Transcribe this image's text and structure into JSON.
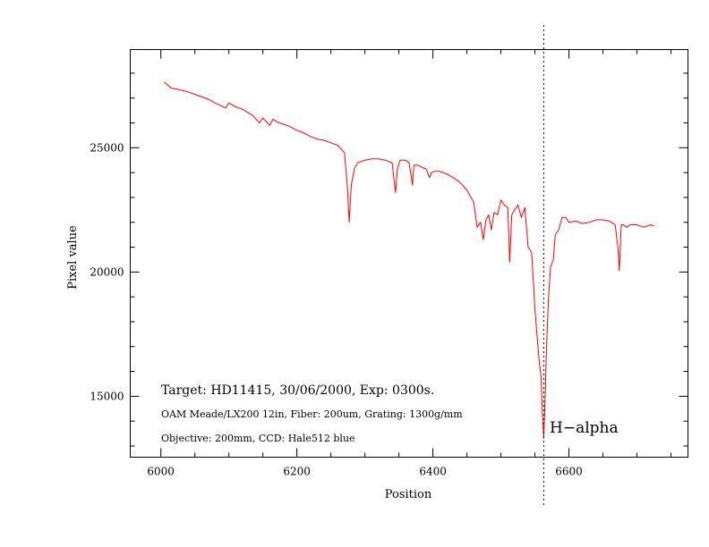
{
  "chart_data": {
    "type": "line",
    "xlabel": "Position",
    "ylabel": "Pixel value",
    "xlim": [
      5955,
      6775
    ],
    "ylim": [
      12550,
      28950
    ],
    "x_ticks": [
      6000,
      6200,
      6400,
      6600
    ],
    "y_ticks": [
      15000,
      20000,
      25000
    ],
    "x_minor_step": 50,
    "y_minor_step": 1000,
    "grid": false,
    "line_color": "#ff0000",
    "marker": {
      "x": 6563,
      "style": "dotted",
      "label": "H−alpha"
    },
    "annotations": [
      "Target: HD11415, 30/06/2000, Exp: 0300s.",
      "OAM Meade/LX200 12in, Fiber: 200um, Grating: 1300g/mm",
      "Objective: 200mm, CCD: Hale512 blue"
    ],
    "series": [
      {
        "x": [
          6005,
          6015,
          6025,
          6040,
          6055,
          6070,
          6080,
          6095,
          6100,
          6110,
          6120,
          6135,
          6145,
          6150,
          6160,
          6165,
          6170,
          6180,
          6190,
          6200,
          6210,
          6220,
          6230,
          6240,
          6250,
          6260,
          6270,
          6274,
          6277,
          6280,
          6285,
          6290,
          6300,
          6310,
          6320,
          6330,
          6340,
          6345,
          6348,
          6352,
          6360,
          6365,
          6370,
          6372,
          6378,
          6385,
          6390,
          6395,
          6398,
          6402,
          6410,
          6420,
          6430,
          6440,
          6450,
          6460,
          6465,
          6470,
          6474,
          6478,
          6482,
          6486,
          6490,
          6495,
          6500,
          6505,
          6510,
          6513,
          6516,
          6520,
          6525,
          6530,
          6535,
          6540,
          6545,
          6548,
          6550,
          6553,
          6556,
          6559,
          6561,
          6563,
          6565,
          6567,
          6570,
          6573,
          6577,
          6580,
          6585,
          6590,
          6595,
          6600,
          6610,
          6620,
          6630,
          6640,
          6650,
          6660,
          6668,
          6672,
          6674,
          6677,
          6680,
          6685,
          6690,
          6700,
          6710,
          6720,
          6725
        ],
        "y": [
          27650,
          27400,
          27350,
          27250,
          27100,
          26950,
          26800,
          26600,
          26800,
          26650,
          26550,
          26300,
          26000,
          26200,
          25900,
          26150,
          26050,
          25950,
          25850,
          25700,
          25600,
          25450,
          25350,
          25300,
          25200,
          25100,
          24800,
          23500,
          22000,
          23500,
          24200,
          24400,
          24500,
          24550,
          24550,
          24500,
          24400,
          23200,
          24200,
          24500,
          24500,
          24400,
          23500,
          24300,
          24300,
          24200,
          24150,
          23800,
          24000,
          24050,
          24050,
          23950,
          23800,
          23600,
          23300,
          22800,
          21800,
          22000,
          21300,
          22100,
          22300,
          21700,
          22400,
          22300,
          22900,
          22700,
          22600,
          20400,
          22300,
          22500,
          22700,
          22200,
          22600,
          21000,
          20800,
          19500,
          18500,
          17500,
          16500,
          15800,
          14300,
          13300,
          15000,
          17000,
          19000,
          20200,
          20500,
          21500,
          21700,
          22200,
          22200,
          22000,
          22050,
          21950,
          22000,
          22100,
          22100,
          22050,
          21900,
          21000,
          20050,
          21900,
          21900,
          21800,
          21900,
          21900,
          21800,
          21900,
          21850
        ]
      }
    ]
  }
}
